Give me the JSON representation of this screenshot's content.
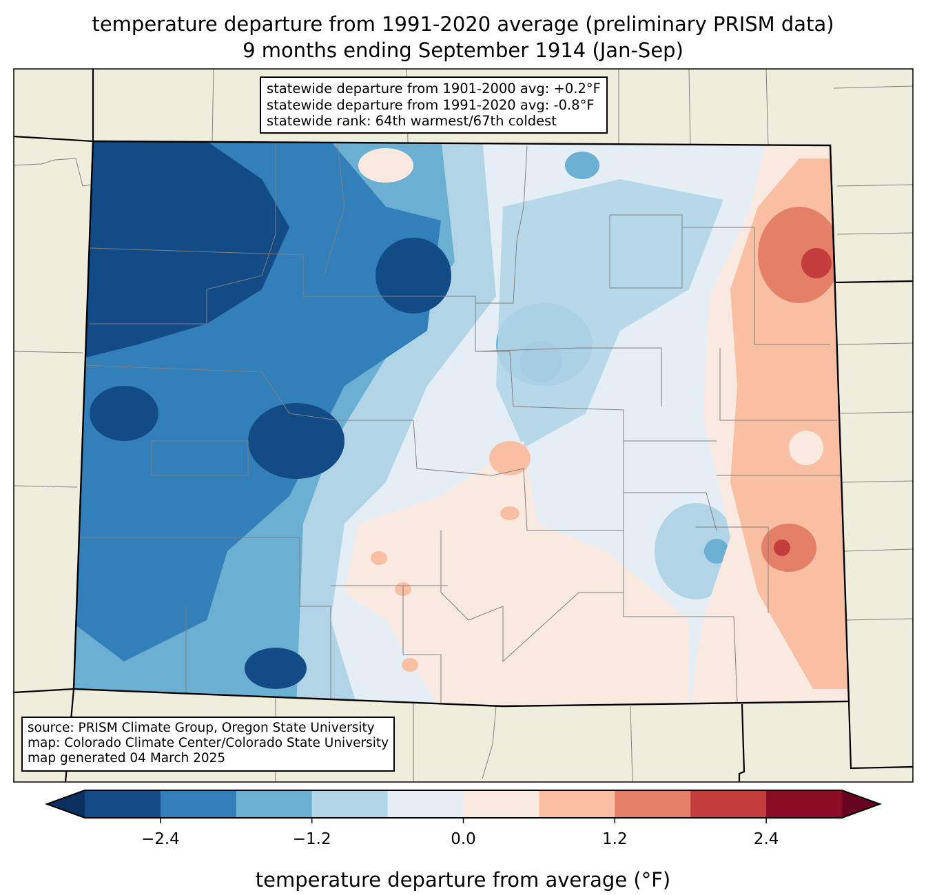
{
  "title": {
    "line1": "temperature departure from 1991-2020 average (preliminary PRISM data)",
    "line2": "9 months ending September 1914 (Jan-Sep)"
  },
  "stats_box": {
    "line1": "statewide departure from 1901-2000 avg: +0.2°F",
    "line2": "statewide departure from 1991-2020 avg: -0.8°F",
    "line3": "statewide rank: 64th warmest/67th coldest"
  },
  "source_box": {
    "line1": "source: PRISM Climate Group, Oregon State University",
    "line2": "map: Colorado Climate Center/Colorado State University",
    "line3": "map generated 04 March 2025"
  },
  "colorbar": {
    "label": "temperature departure from average (°F)",
    "min": -3.0,
    "max": 3.0,
    "step": 0.6,
    "ticks": [
      "−2.4",
      "−1.2",
      "0.0",
      "1.2",
      "2.4"
    ],
    "tick_values": [
      -2.4,
      -1.2,
      0.0,
      1.2,
      2.4
    ],
    "colors": [
      "#134b87",
      "#327fba",
      "#6bafd2",
      "#b1d5e7",
      "#e6eef5",
      "#f9e9e0",
      "#f8bfa3",
      "#e58068",
      "#c43c3c",
      "#8a0c25"
    ],
    "under_color": "#0b2f5e",
    "over_color": "#680221"
  },
  "map_colors": {
    "land": "#efeedc",
    "border": "#808080"
  }
}
